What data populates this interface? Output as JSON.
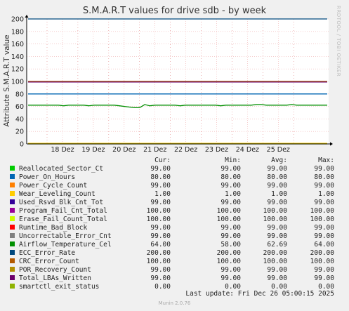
{
  "chart_data": {
    "type": "line",
    "title": "S.M.A.R.T values for drive sdb - by week",
    "ylabel": "Attribute S.M.A.R.T value",
    "ylim": [
      0,
      200
    ],
    "yticks": [
      0,
      20,
      40,
      60,
      80,
      100,
      120,
      140,
      160,
      180,
      200
    ],
    "xticks": [
      "18 Dez",
      "19 Dez",
      "20 Dez",
      "21 Dez",
      "22 Dez",
      "23 Dez",
      "24 Dez",
      "25 Dez"
    ],
    "grid": true,
    "series": [
      {
        "name": "Reallocated_Sector_Ct",
        "color": "#00cc00",
        "cur": "99.00",
        "min": "99.00",
        "avg": "99.00",
        "max": "99.00",
        "value": 99
      },
      {
        "name": "Power_On_Hours",
        "color": "#0066b3",
        "cur": "80.00",
        "min": "80.00",
        "avg": "80.00",
        "max": "80.00",
        "value": 80
      },
      {
        "name": "Power_Cycle_Count",
        "color": "#ff8000",
        "cur": "99.00",
        "min": "99.00",
        "avg": "99.00",
        "max": "99.00",
        "value": 99
      },
      {
        "name": "Wear_Leveling_Count",
        "color": "#ffcc00",
        "cur": "1.00",
        "min": "1.00",
        "avg": "1.00",
        "max": "1.00",
        "value": 1
      },
      {
        "name": "Used_Rsvd_Blk_Cnt_Tot",
        "color": "#330099",
        "cur": "99.00",
        "min": "99.00",
        "avg": "99.00",
        "max": "99.00",
        "value": 99
      },
      {
        "name": "Program_Fail_Cnt_Total",
        "color": "#990099",
        "cur": "100.00",
        "min": "100.00",
        "avg": "100.00",
        "max": "100.00",
        "value": 100
      },
      {
        "name": "Erase_Fail_Count_Total",
        "color": "#ccff00",
        "cur": "100.00",
        "min": "100.00",
        "avg": "100.00",
        "max": "100.00",
        "value": 100
      },
      {
        "name": "Runtime_Bad_Block",
        "color": "#ff0000",
        "cur": "99.00",
        "min": "99.00",
        "avg": "99.00",
        "max": "99.00",
        "value": 99
      },
      {
        "name": "Uncorrectable_Error_Cnt",
        "color": "#808080",
        "cur": "99.00",
        "min": "99.00",
        "avg": "99.00",
        "max": "99.00",
        "value": 99
      },
      {
        "name": "Airflow_Temperature_Cel",
        "color": "#008f00",
        "cur": "64.00",
        "min": "58.00",
        "avg": "62.69",
        "max": "64.00",
        "value": 62
      },
      {
        "name": "ECC_Error_Rate",
        "color": "#00487d",
        "cur": "200.00",
        "min": "200.00",
        "avg": "200.00",
        "max": "200.00",
        "value": 200
      },
      {
        "name": "CRC_Error_Count",
        "color": "#b35a00",
        "cur": "100.00",
        "min": "100.00",
        "avg": "100.00",
        "max": "100.00",
        "value": 100
      },
      {
        "name": "POR_Recovery_Count",
        "color": "#b38f00",
        "cur": "99.00",
        "min": "99.00",
        "avg": "99.00",
        "max": "99.00",
        "value": 99
      },
      {
        "name": "Total_LBAs_Written",
        "color": "#6b006b",
        "cur": "99.00",
        "min": "99.00",
        "avg": "99.00",
        "max": "99.00",
        "value": 99
      },
      {
        "name": "smartctl_exit_status",
        "color": "#8fb300",
        "cur": "0.00",
        "min": "0.00",
        "avg": "0.00",
        "max": "0.00",
        "value": 0
      }
    ],
    "temperature_profile": [
      62,
      62,
      62,
      62,
      62,
      62,
      62,
      61,
      62,
      62,
      62,
      62,
      61,
      62,
      62,
      62,
      62,
      62,
      61,
      60,
      59,
      58,
      58,
      63,
      61,
      62,
      62,
      62,
      62,
      62,
      61,
      62,
      62,
      62,
      62,
      62,
      62,
      62,
      61,
      62,
      62,
      62,
      62,
      62,
      62,
      63,
      63,
      62,
      62,
      62,
      62,
      62,
      63,
      62,
      62,
      62,
      62,
      62,
      62,
      62
    ]
  },
  "legend_header": {
    "cur": "Cur:",
    "min": "Min:",
    "avg": "Avg:",
    "max": "Max:"
  },
  "last_update": "Last update: Fri Dec 26 05:00:15 2025",
  "side_label": "RRDTOOL / TOBI OETIKER",
  "footer": "Munin 2.0.76"
}
